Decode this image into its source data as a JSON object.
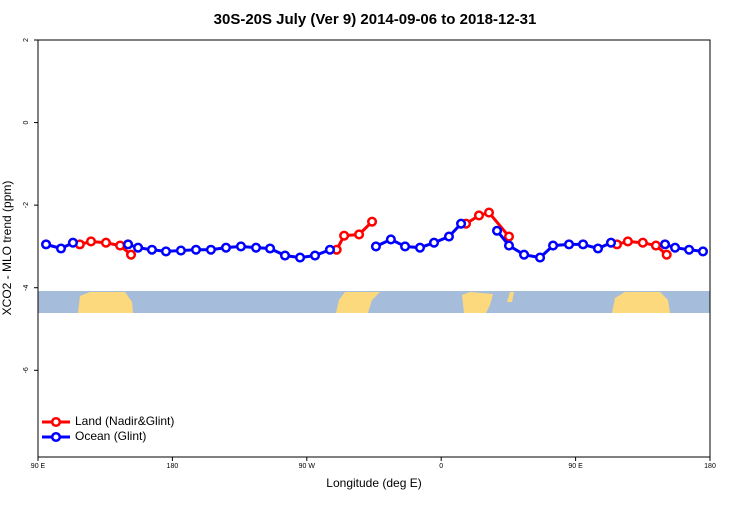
{
  "chart_data": {
    "type": "line",
    "title": "30S-20S July (Ver 9)   2014-09-06 to 2018-12-31",
    "x_label": "Longitude (deg E)",
    "y_label": "XCO2 - MLO trend (ppm)",
    "xlim": [
      90,
      540
    ],
    "xticks": [
      {
        "value": 90,
        "label": "90 E"
      },
      180,
      {
        "value": 270,
        "label": "90 W"
      },
      {
        "value": 360,
        "label": "0"
      },
      {
        "value": 450,
        "label": "90 E"
      },
      {
        "value": 540,
        "label": "180"
      }
    ],
    "ylim": [
      -8.1,
      2
    ],
    "yticks": [
      2,
      0,
      -2,
      -4,
      -6
    ],
    "legend": "lower left",
    "series": [
      {
        "name": "Land (Nadir&Glint)",
        "color": "#ff0000",
        "x": [
          118,
          125.5,
          135.5,
          145,
          152.3,
          null,
          290,
          295,
          305,
          313.7,
          null,
          376.6,
          385.3,
          392,
          405.4,
          null,
          477.7,
          485,
          495,
          503.8,
          511
        ],
        "values": [
          -2.95,
          -2.88,
          -2.91,
          -2.98,
          -3.2,
          null,
          -3.08,
          -2.74,
          -2.71,
          -2.4,
          null,
          -2.45,
          -2.25,
          -2.18,
          -2.76,
          null,
          -2.95,
          -2.88,
          -2.91,
          -2.98,
          -3.2
        ]
      },
      {
        "name": "Ocean (Glint)",
        "color": "#0000ff",
        "x": [
          95.4,
          105.4,
          113.4,
          null,
          150.3,
          157,
          166.3,
          175.7,
          185.7,
          195.8,
          205.8,
          215.9,
          225.9,
          236,
          245.4,
          255.4,
          265.5,
          275.5,
          285.5,
          null,
          316.3,
          326.3,
          335.8,
          345.8,
          355.2,
          365.2,
          373.3,
          null,
          397.4,
          405.4,
          415.5,
          426.2,
          434.9,
          445.6,
          455,
          465,
          473.7,
          null,
          509.9,
          516.6,
          526,
          535.3
        ],
        "values": [
          -2.95,
          -3.05,
          -2.91,
          null,
          -2.95,
          -3.03,
          -3.08,
          -3.12,
          -3.1,
          -3.08,
          -3.08,
          -3.03,
          -3.0,
          -3.03,
          -3.05,
          -3.22,
          -3.27,
          -3.22,
          -3.08,
          null,
          -3.0,
          -2.83,
          -3.0,
          -3.03,
          -2.91,
          -2.76,
          -2.45,
          null,
          -2.62,
          -2.98,
          -3.2,
          -3.27,
          -2.98,
          -2.95,
          -2.95,
          -3.05,
          -2.91,
          null,
          -2.95,
          -3.03,
          -3.08,
          -3.12
        ]
      }
    ]
  }
}
